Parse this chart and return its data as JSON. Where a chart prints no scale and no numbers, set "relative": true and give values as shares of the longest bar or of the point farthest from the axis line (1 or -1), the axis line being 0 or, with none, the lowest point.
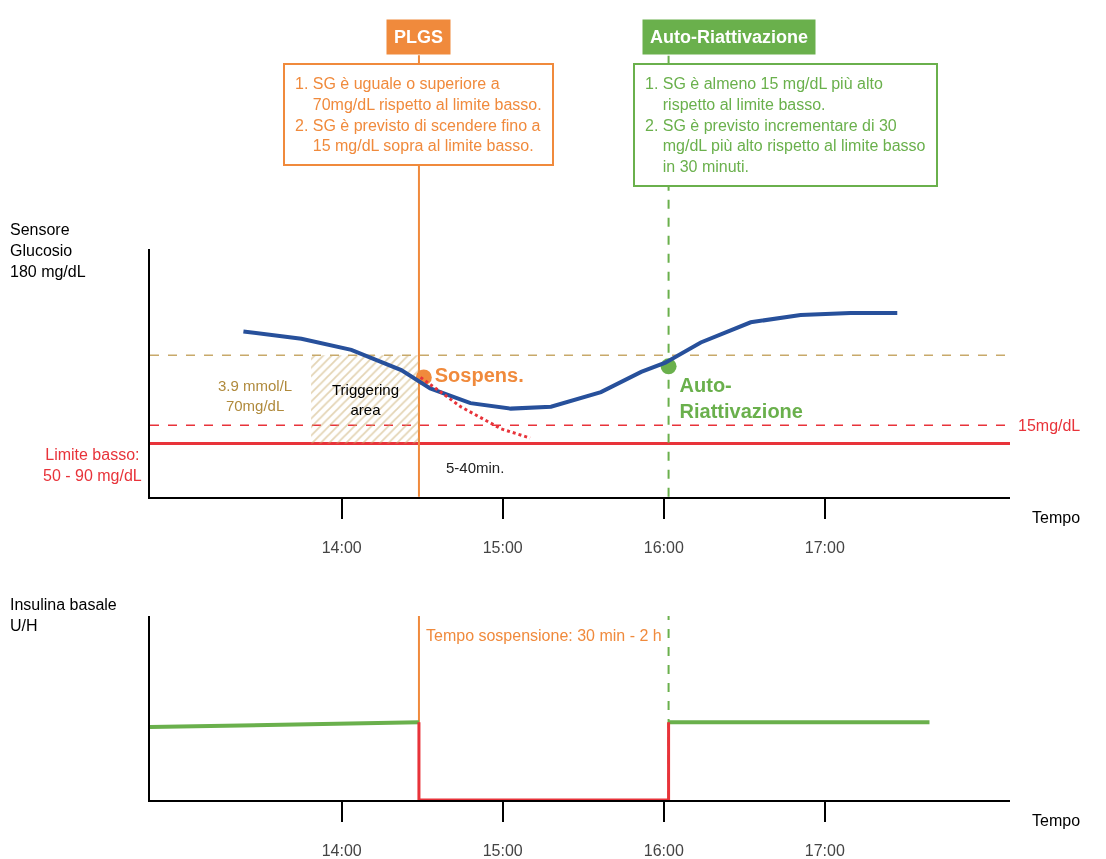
{
  "chart_data": [
    {
      "type": "line",
      "relative": true,
      "xlabel": "Tempo",
      "ylabel": "Sensore\nGlucosio\n180 mg/dL",
      "xlim": [
        12.81,
        18.15
      ],
      "xticks": [
        {
          "value": 14,
          "label": "14:00"
        },
        {
          "value": 15,
          "label": "15:00"
        },
        {
          "value": 16,
          "label": "16:00"
        },
        {
          "value": 17,
          "label": "17:00"
        }
      ],
      "series": [
        {
          "color": "#27509b",
          "x": [
            13.39,
            13.75,
            14.06,
            14.37,
            14.55,
            14.8,
            15.05,
            15.3,
            15.61,
            15.86,
            16.01,
            16.23,
            16.54,
            16.85,
            17.16,
            17.45
          ],
          "values": [
            0.9,
            0.86,
            0.8,
            0.69,
            0.59,
            0.51,
            0.48,
            0.49,
            0.57,
            0.68,
            0.73,
            0.84,
            0.95,
            0.99,
            1.0,
            1.0
          ]
        },
        {
          "color": "#e8333a",
          "line_style": "dotted",
          "x": [
            14.49,
            14.74,
            14.99,
            15.17
          ],
          "values": [
            0.65,
            0.49,
            0.37,
            0.32
          ]
        },
        {
          "type": "scatter",
          "name": "Sospens.",
          "color": "#f08a3c",
          "x": [
            14.51
          ],
          "values": [
            0.65
          ]
        },
        {
          "type": "scatter",
          "name": "Auto-\nRiattivazione",
          "color": "#6ab04c",
          "x": [
            16.03
          ],
          "values": [
            0.71
          ]
        }
      ],
      "ref_lines": [
        {
          "axis": "y",
          "value": 0.29,
          "color": "#e8333a",
          "line_style": "solid"
        },
        {
          "axis": "y",
          "value": 0.39,
          "label": "15mg/dL",
          "color": "#e8333a",
          "line_style": "dashed"
        },
        {
          "axis": "y",
          "value": 0.77,
          "color": "#c8a96a",
          "line_style": "dashed"
        },
        {
          "axis": "x",
          "value": 14.48,
          "label": "PLGS",
          "color": "#f08a3c",
          "line_style": "solid"
        },
        {
          "axis": "x",
          "value": 16.03,
          "label": "Auto-Riattivazione",
          "color": "#6ab04c",
          "line_style": "dashed"
        }
      ],
      "bands": [
        {
          "axis": "x",
          "from": 13.81,
          "to": 14.48,
          "label": "Triggering\narea",
          "color": "#c8a96a"
        }
      ],
      "annotations": [
        "1. SG è uguale o superiore a\n    70mg/dL rispetto al limite basso.\n2. SG è previsto di scendere fino a\n    15 mg/dL sopra al limite basso.",
        "1. SG è almeno 15 mg/dL più alto\n    rispetto al limite basso.\n2. SG è previsto incrementare di 30\n    mg/dL più alto rispetto al limite basso\n    in 30 minuti.",
        "3.9 mmol/L\n70mg/dL",
        "5-40min.",
        "Limite basso:\n50 - 90 mg/dL"
      ]
    },
    {
      "type": "line",
      "relative": true,
      "xlabel": "Tempo",
      "ylabel": "Insulina basale\nU/H",
      "xlim": [
        12.81,
        18.15
      ],
      "xticks": [
        {
          "value": 14,
          "label": "14:00"
        },
        {
          "value": 15,
          "label": "15:00"
        },
        {
          "value": 16,
          "label": "16:00"
        },
        {
          "value": 17,
          "label": "17:00"
        }
      ],
      "series": [
        {
          "color": "#6ab04c",
          "x": [
            12.81,
            14.48,
            15.0,
            16.03,
            17.65
          ],
          "values": [
            0.94,
            1.0,
            null,
            1.0,
            1.0
          ]
        },
        {
          "color": "#e8333a",
          "x": [
            14.48,
            14.48,
            16.03,
            16.03
          ],
          "values": [
            1.0,
            0.0,
            0.0,
            1.0
          ]
        }
      ],
      "ref_lines": [
        {
          "axis": "x",
          "value": 14.48,
          "color": "#f08a3c",
          "line_style": "solid"
        },
        {
          "axis": "x",
          "value": 16.03,
          "color": "#6ab04c",
          "line_style": "dashed"
        }
      ],
      "annotations": [
        "Tempo sospensione: 30 min - 2 h"
      ]
    }
  ]
}
